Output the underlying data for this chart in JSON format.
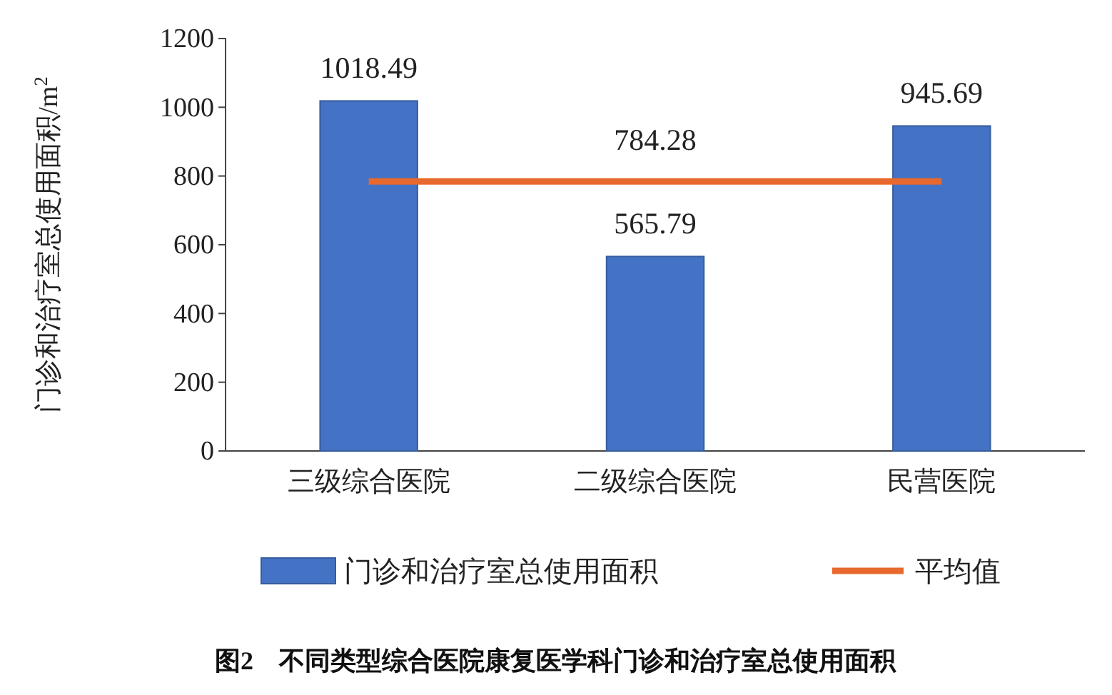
{
  "chart_data": {
    "type": "bar",
    "title": "图2　不同类型综合医院康复医学科门诊和治疗室总使用面积",
    "ylabel": "门诊和治疗室总使用面积/m$^{2}$",
    "categories": [
      "三级综合医院",
      "二级综合医院",
      "民营医院"
    ],
    "series": [
      {
        "name": "门诊和治疗室总使用面积",
        "color": "#4472c4",
        "values": [
          1018.49,
          565.79,
          945.69
        ],
        "value_labels": [
          "1018.49",
          "565.79",
          "945.69"
        ]
      },
      {
        "name": "平均值",
        "type": "line",
        "color": "#e8692e",
        "values": [
          784.28,
          784.28,
          784.28
        ],
        "value_labels": [
          null,
          "784.28",
          null
        ]
      }
    ],
    "ylim": [
      0,
      1200
    ],
    "yticks": [
      0,
      200,
      400,
      600,
      800,
      1000,
      1200
    ],
    "grid": false,
    "legend": "bottom"
  }
}
